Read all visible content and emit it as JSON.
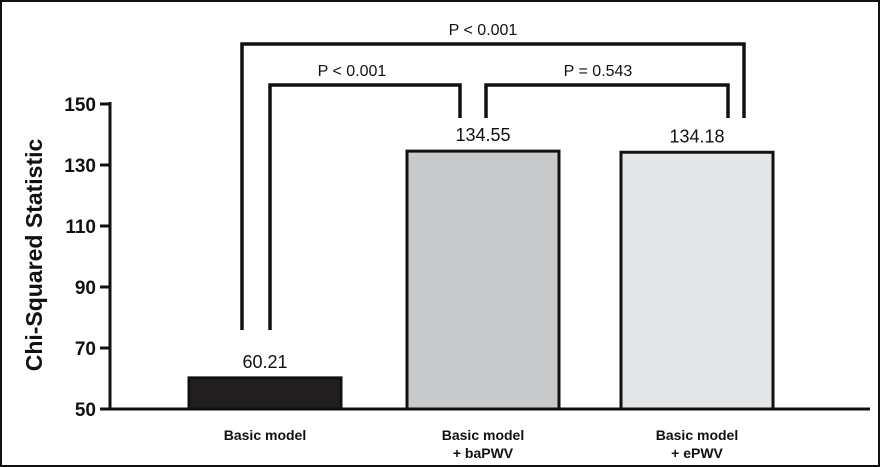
{
  "chart_data": {
    "type": "bar",
    "ylabel": "Chi-Squared Statistic",
    "ylim": [
      50,
      150
    ],
    "yticks": [
      50,
      70,
      90,
      110,
      130,
      150
    ],
    "categories": [
      [
        "Basic model"
      ],
      [
        "Basic model",
        "+ baPWV"
      ],
      [
        "Basic model",
        "+ ePWV"
      ]
    ],
    "values": [
      60.21,
      134.55,
      134.18
    ],
    "value_labels": [
      "60.21",
      "134.55",
      "134.18"
    ],
    "bar_colors": [
      "#231f20",
      "#c8c9ca",
      "#e5e6e7"
    ],
    "comparisons": [
      {
        "from": 0,
        "to": 1,
        "label": "P < 0.001"
      },
      {
        "from": 1,
        "to": 2,
        "label": "P = 0.543"
      },
      {
        "from": 0,
        "to": 2,
        "label": "P < 0.001"
      }
    ],
    "grid": false,
    "legend": "none"
  }
}
